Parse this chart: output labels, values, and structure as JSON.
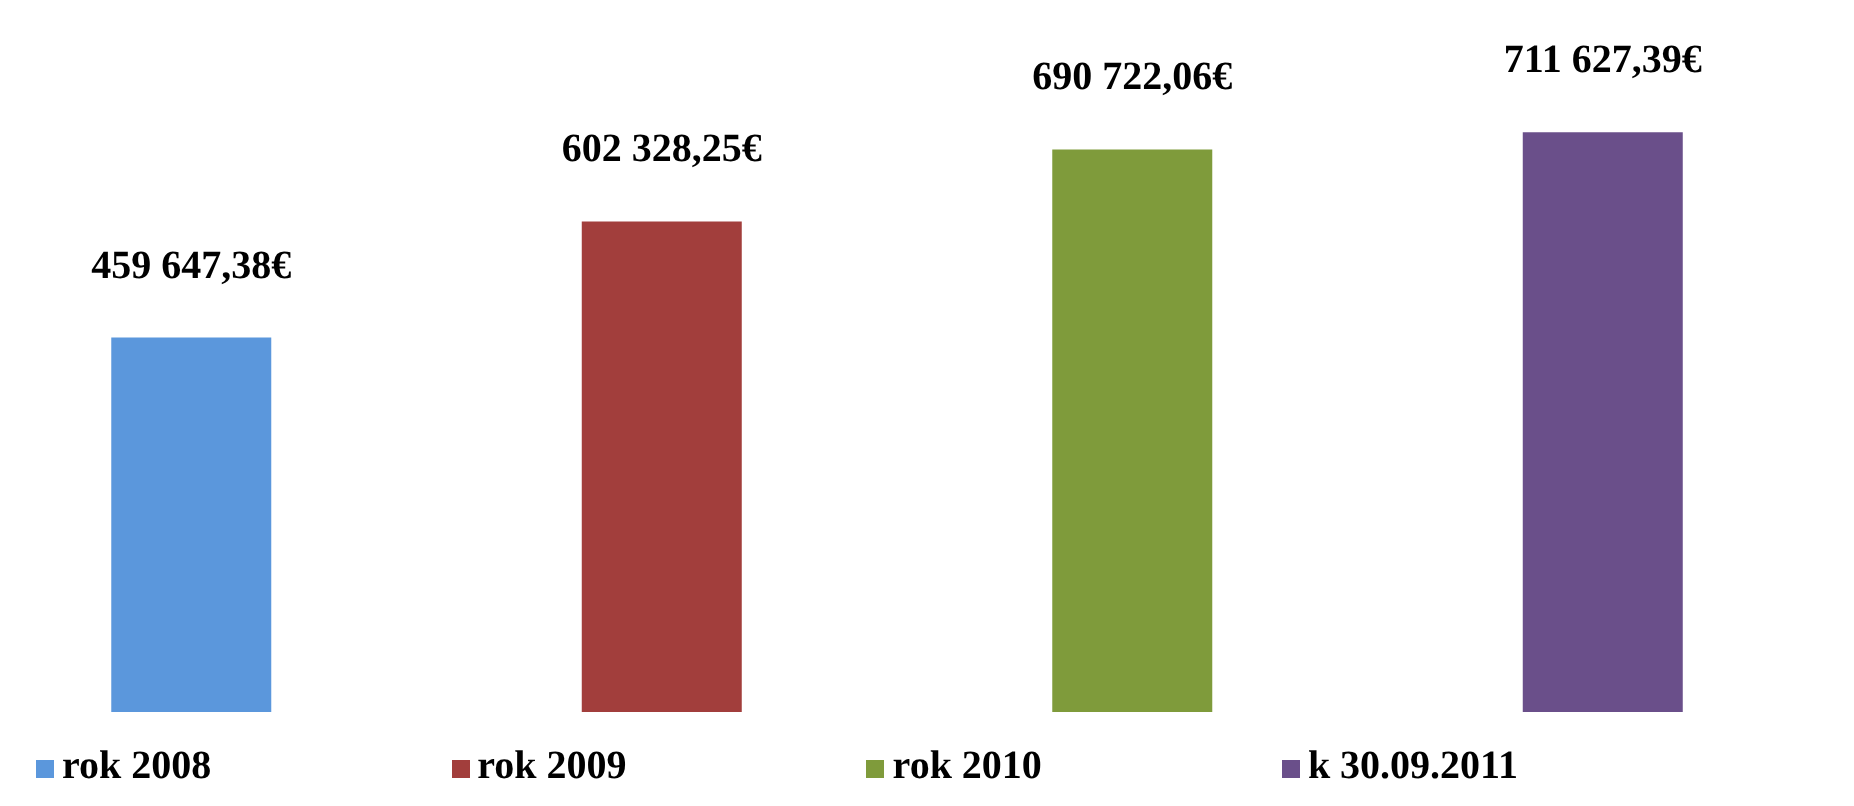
{
  "chart_data": {
    "type": "bar",
    "categories": [
      null,
      null,
      null,
      null
    ],
    "legend": "bottom",
    "stacked": true,
    "series": [
      {
        "name": "rok 2008",
        "color": "#5b97dc",
        "values": [
          459647.38,
          null,
          null,
          null
        ],
        "value_labels": [
          "459 647,38€",
          null,
          null,
          null
        ]
      },
      {
        "name": "rok 2009",
        "color": "#a23e3c",
        "values": [
          null,
          602328.25,
          null,
          null
        ],
        "value_labels": [
          null,
          "602 328,25€",
          null,
          null
        ]
      },
      {
        "name": "rok 2010",
        "color": "#7f9b3b",
        "values": [
          null,
          null,
          690722.06,
          null
        ],
        "value_labels": [
          null,
          null,
          "690 722,06€",
          null
        ]
      },
      {
        "name": "k 30.09.2011",
        "color": "#6a4f8a",
        "values": [
          null,
          null,
          null,
          711627.39
        ],
        "value_labels": [
          null,
          null,
          null,
          "711 627,39€"
        ]
      }
    ]
  }
}
